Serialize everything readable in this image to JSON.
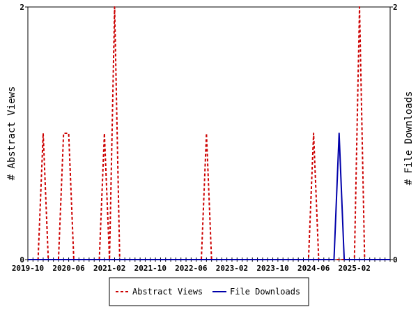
{
  "chart_data": {
    "type": "line",
    "x_start": "2019-10",
    "x_tick_labels": [
      "2019-10",
      "2020-06",
      "2021-02",
      "2021-10",
      "2022-06",
      "2023-02",
      "2023-10",
      "2024-06",
      "2025-02"
    ],
    "ylabel_left": "# Abstract Views",
    "ylabel_right": "# File Downloads",
    "ylim_left": [
      0,
      2
    ],
    "ylim_right": [
      0,
      2
    ],
    "y_tick_labels_left": [
      "0",
      "2"
    ],
    "y_tick_labels_right": [
      "0",
      "2"
    ],
    "legend_position": "bottom-center",
    "grid": false,
    "series": [
      {
        "name": "Abstract Views",
        "color": "#cc0000",
        "style": "dashed",
        "axis": "left",
        "points": [
          [
            "2020-01",
            1
          ],
          [
            "2020-05",
            1
          ],
          [
            "2020-06",
            1
          ],
          [
            "2021-01",
            1
          ],
          [
            "2021-03",
            2
          ],
          [
            "2022-09",
            1
          ],
          [
            "2024-06",
            1
          ],
          [
            "2025-03",
            2
          ]
        ]
      },
      {
        "name": "File Downloads",
        "color": "#0000aa",
        "style": "solid",
        "axis": "right",
        "points": [
          [
            "2024-11",
            1
          ]
        ]
      }
    ]
  }
}
